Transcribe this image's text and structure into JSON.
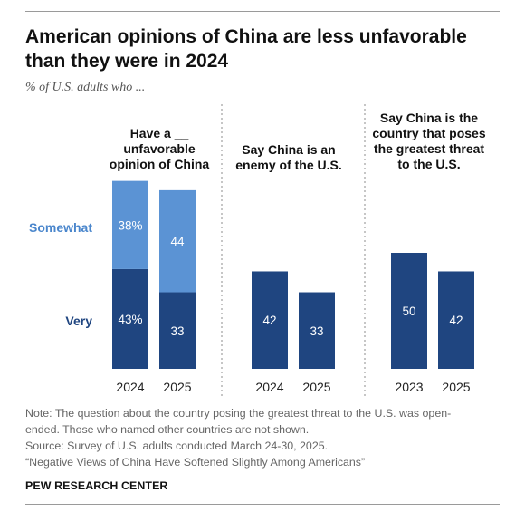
{
  "title": "American opinions of China are less unfavorable than they were in 2024",
  "subtitle": "% of U.S. adults who ...",
  "row_labels": {
    "somewhat": "Somewhat",
    "very": "Very"
  },
  "colors": {
    "very": "#1f4580",
    "somewhat": "#5b93d4",
    "somewhat_text": "#4a86cc",
    "very_text": "#1f4580"
  },
  "chart_data": [
    {
      "type": "bar",
      "stacked": true,
      "title_lines": [
        "Have a __",
        "unfavorable",
        "opinion of China"
      ],
      "categories": [
        "2024",
        "2025"
      ],
      "series": [
        {
          "name": "Very",
          "values": [
            43,
            33
          ],
          "labels": [
            "43%",
            "33"
          ]
        },
        {
          "name": "Somewhat",
          "values": [
            38,
            44
          ],
          "labels": [
            "38%",
            "44"
          ]
        }
      ]
    },
    {
      "type": "bar",
      "title_lines": [
        "Say China is an",
        "enemy of the U.S."
      ],
      "categories": [
        "2024",
        "2025"
      ],
      "values": [
        42,
        33
      ],
      "labels": [
        "42",
        "33"
      ]
    },
    {
      "type": "bar",
      "title_lines": [
        "Say China is the",
        "country that poses",
        "the greatest threat",
        "to the U.S."
      ],
      "categories": [
        "2023",
        "2025"
      ],
      "values": [
        50,
        42
      ],
      "labels": [
        "50",
        "42"
      ]
    }
  ],
  "notes": [
    "Note: The question about the country posing the greatest threat to the U.S. was open-",
    "ended. Those who named other countries are not shown.",
    "Source: Survey of U.S. adults conducted March 24-30, 2025.",
    "“Negative Views of China Have Softened Slightly Among Americans”"
  ],
  "brand": "PEW RESEARCH CENTER"
}
